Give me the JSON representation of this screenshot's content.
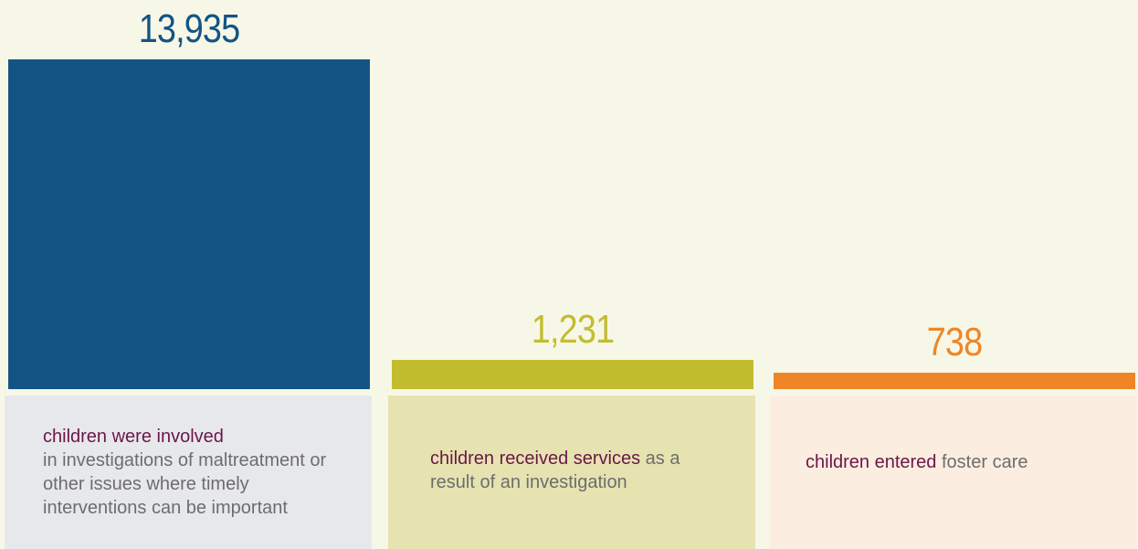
{
  "chart_data": {
    "type": "bar",
    "categories": [
      "children were involved",
      "children received services",
      "children entered"
    ],
    "values": [
      13935,
      1231,
      738
    ],
    "value_labels": [
      "13,935",
      "1,231",
      "738"
    ],
    "colors": [
      "#145485",
      "#c2bd2f",
      "#ee8627"
    ],
    "card_colors": [
      "#e7e8ec",
      "#e6e3b0",
      "#fcede1"
    ],
    "descriptions": [
      {
        "highlight": "children were involved",
        "rest": "in investigations of maltreatment or other issues where timely interventions can be important"
      },
      {
        "highlight": "children received services",
        "rest": " as a result of an investigation"
      },
      {
        "highlight": "children entered",
        "rest": " foster care"
      }
    ]
  }
}
